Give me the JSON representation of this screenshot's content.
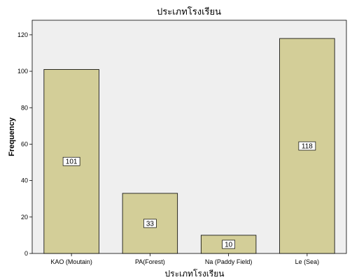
{
  "chart_data": {
    "type": "bar",
    "title": "ประเภทโรงเรียน",
    "xlabel": "ประเภทโรงเรียน",
    "ylabel": "Frequency",
    "categories": [
      "KAO (Moutain)",
      "PA(Forest)",
      "Na (Paddy Field)",
      "Le (Sea)"
    ],
    "values": [
      101,
      33,
      10,
      118
    ],
    "ylim": [
      0,
      128
    ],
    "yticks": [
      0,
      20,
      40,
      60,
      80,
      100,
      120
    ],
    "grid": false,
    "legend": "none",
    "colors": {
      "plot_bg": "#efefef",
      "bar_fill": "#d3ce98",
      "bar_stroke": "#000000"
    }
  }
}
